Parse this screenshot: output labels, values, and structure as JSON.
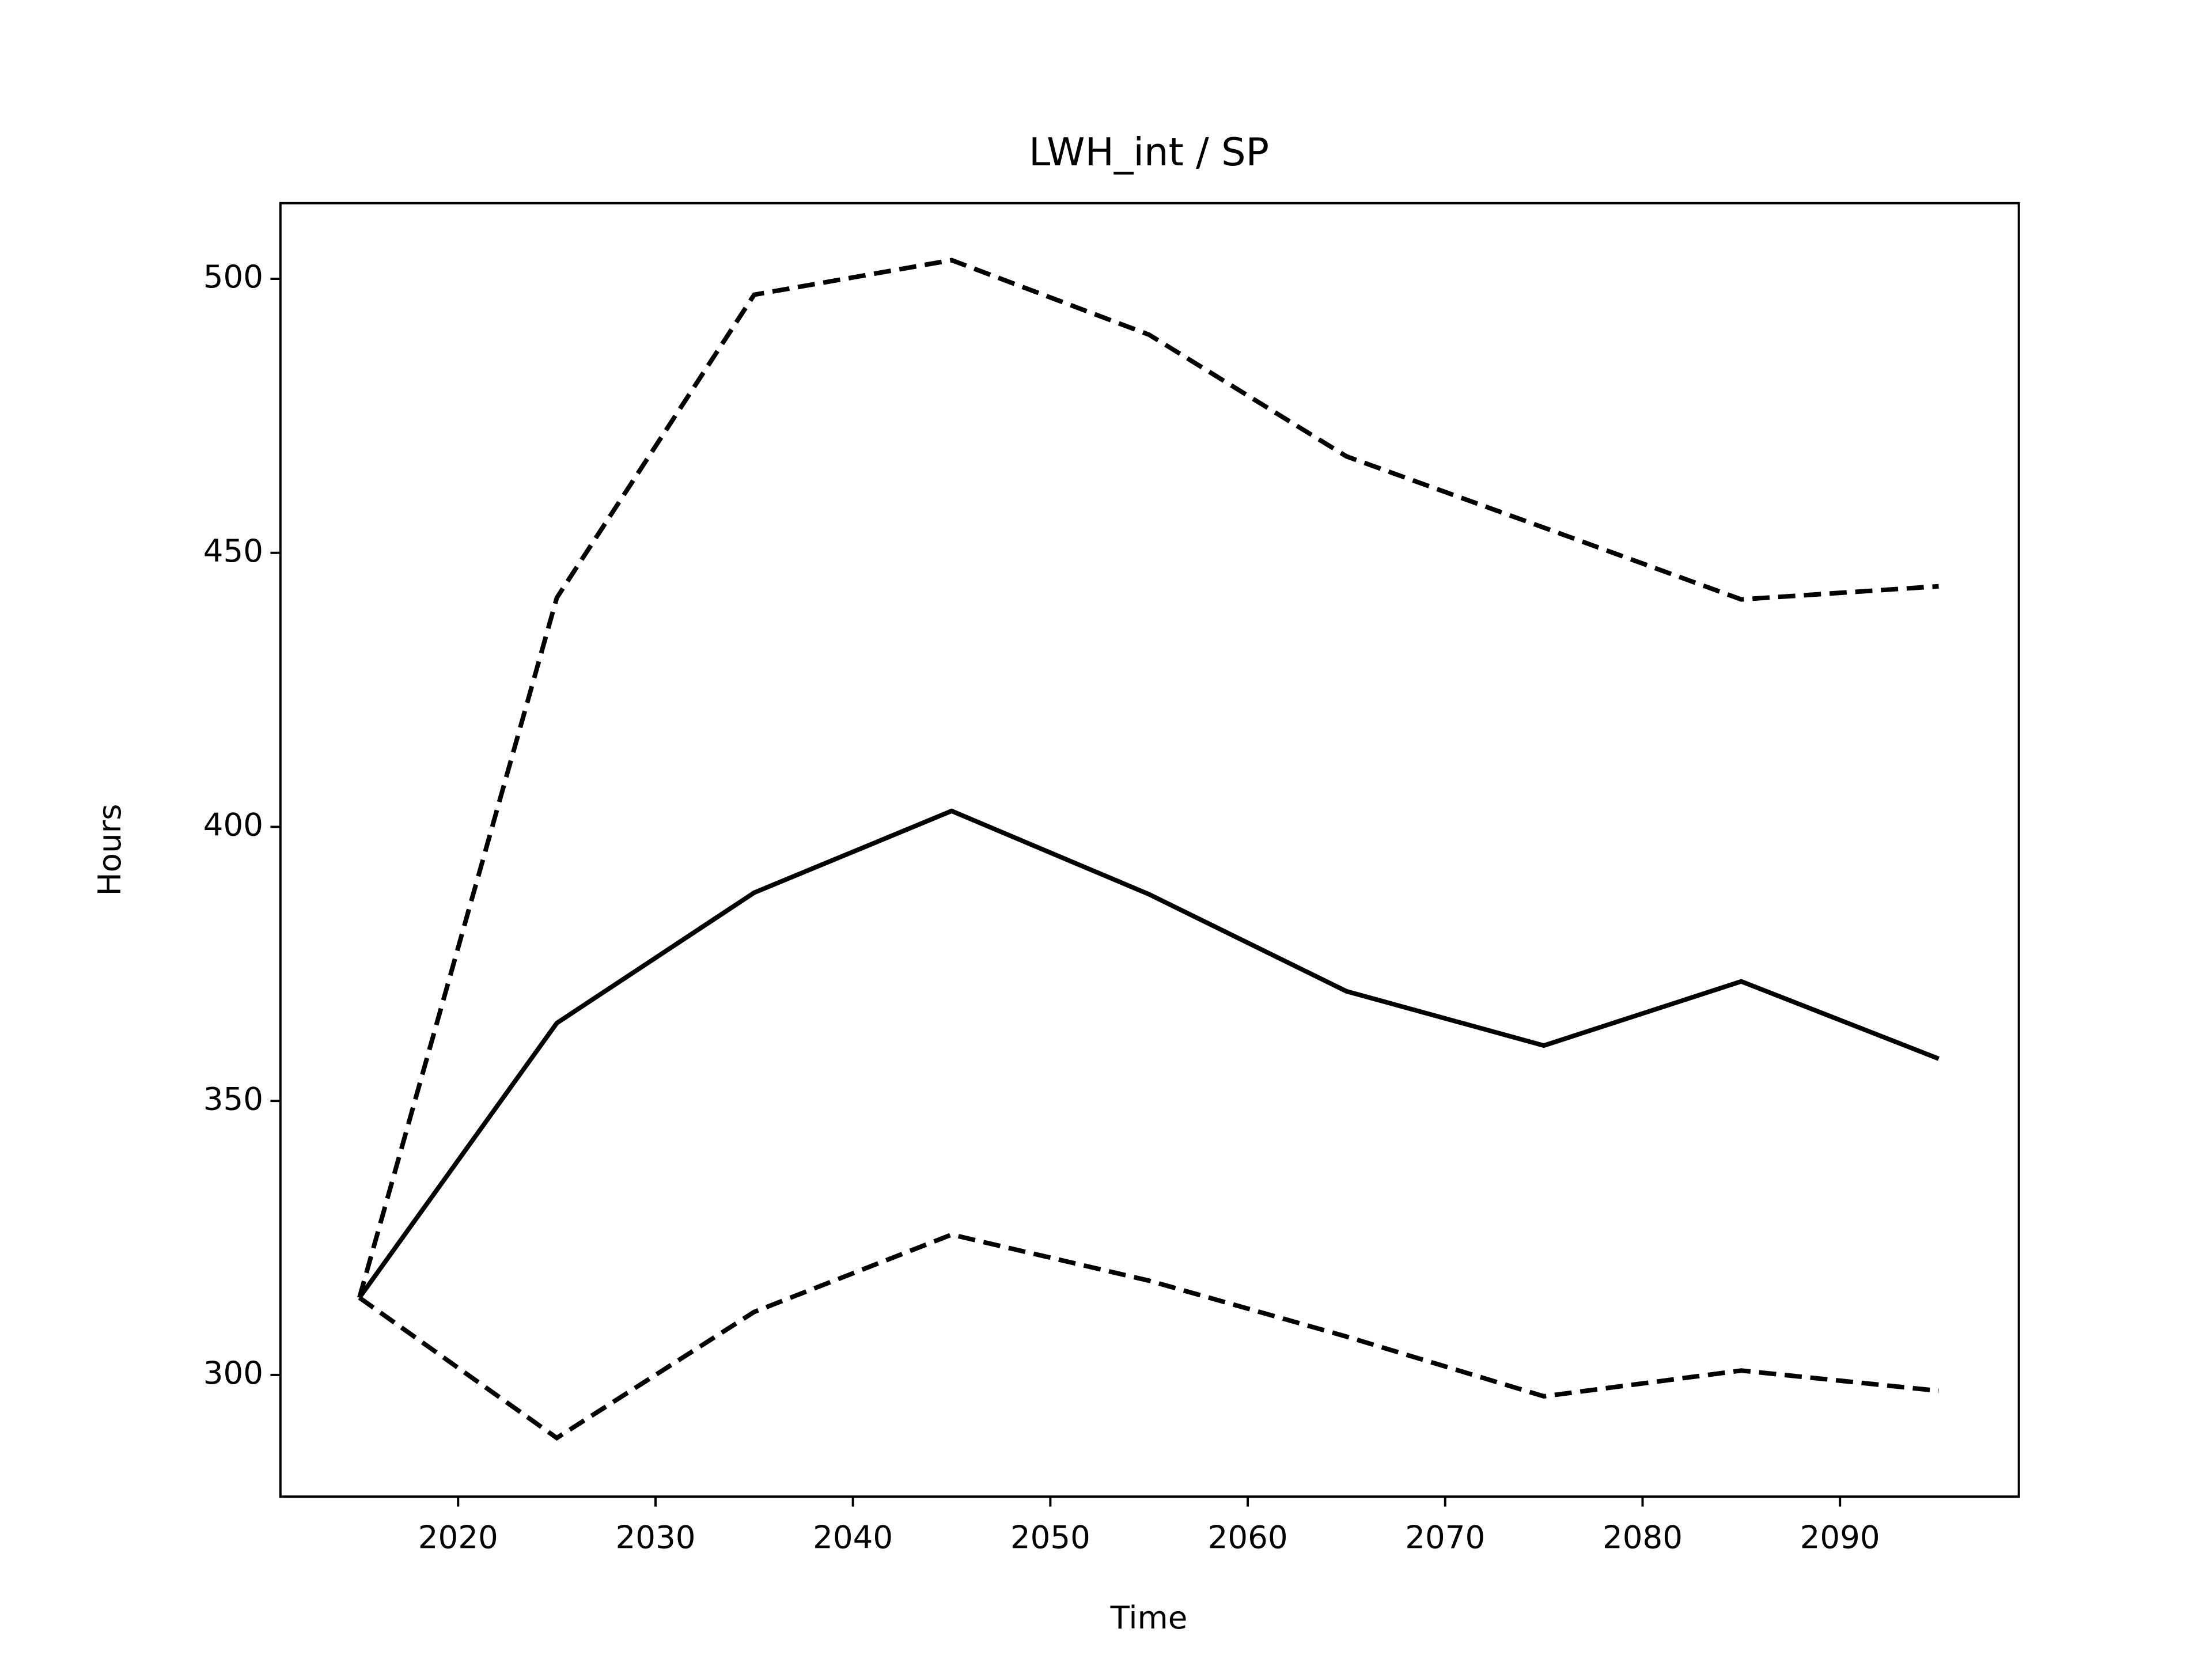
{
  "chart_data": {
    "type": "line",
    "title": "LWH_int / SP",
    "xlabel": "Time",
    "ylabel": "Hours",
    "x": [
      2015,
      2025,
      2035,
      2045,
      2055,
      2065,
      2075,
      2085,
      2095
    ],
    "series": [
      {
        "color": "#000000",
        "linestyle": "solid",
        "values": [
          314.1,
          364.2,
          388.0,
          402.9,
          387.7,
          370.0,
          360.1,
          371.8,
          357.7
        ]
      },
      {
        "color": "#000000",
        "linestyle": "dashed",
        "values": [
          314.1,
          441.8,
          497.1,
          503.4,
          489.8,
          467.6,
          454.6,
          441.5,
          443.9
        ]
      },
      {
        "color": "#000000",
        "linestyle": "dashed",
        "values": [
          314.1,
          288.5,
          311.5,
          325.6,
          317.2,
          307.0,
          296.1,
          300.8,
          297.1
        ]
      }
    ],
    "xlim": [
      2011.0,
      2099.06
    ],
    "xticks": [
      2020,
      2030,
      2040,
      2050,
      2060,
      2070,
      2080,
      2090
    ],
    "ylim": [
      277.8,
      513.8
    ],
    "yticks": [
      300,
      350,
      400,
      450,
      500
    ],
    "grid": false
  }
}
